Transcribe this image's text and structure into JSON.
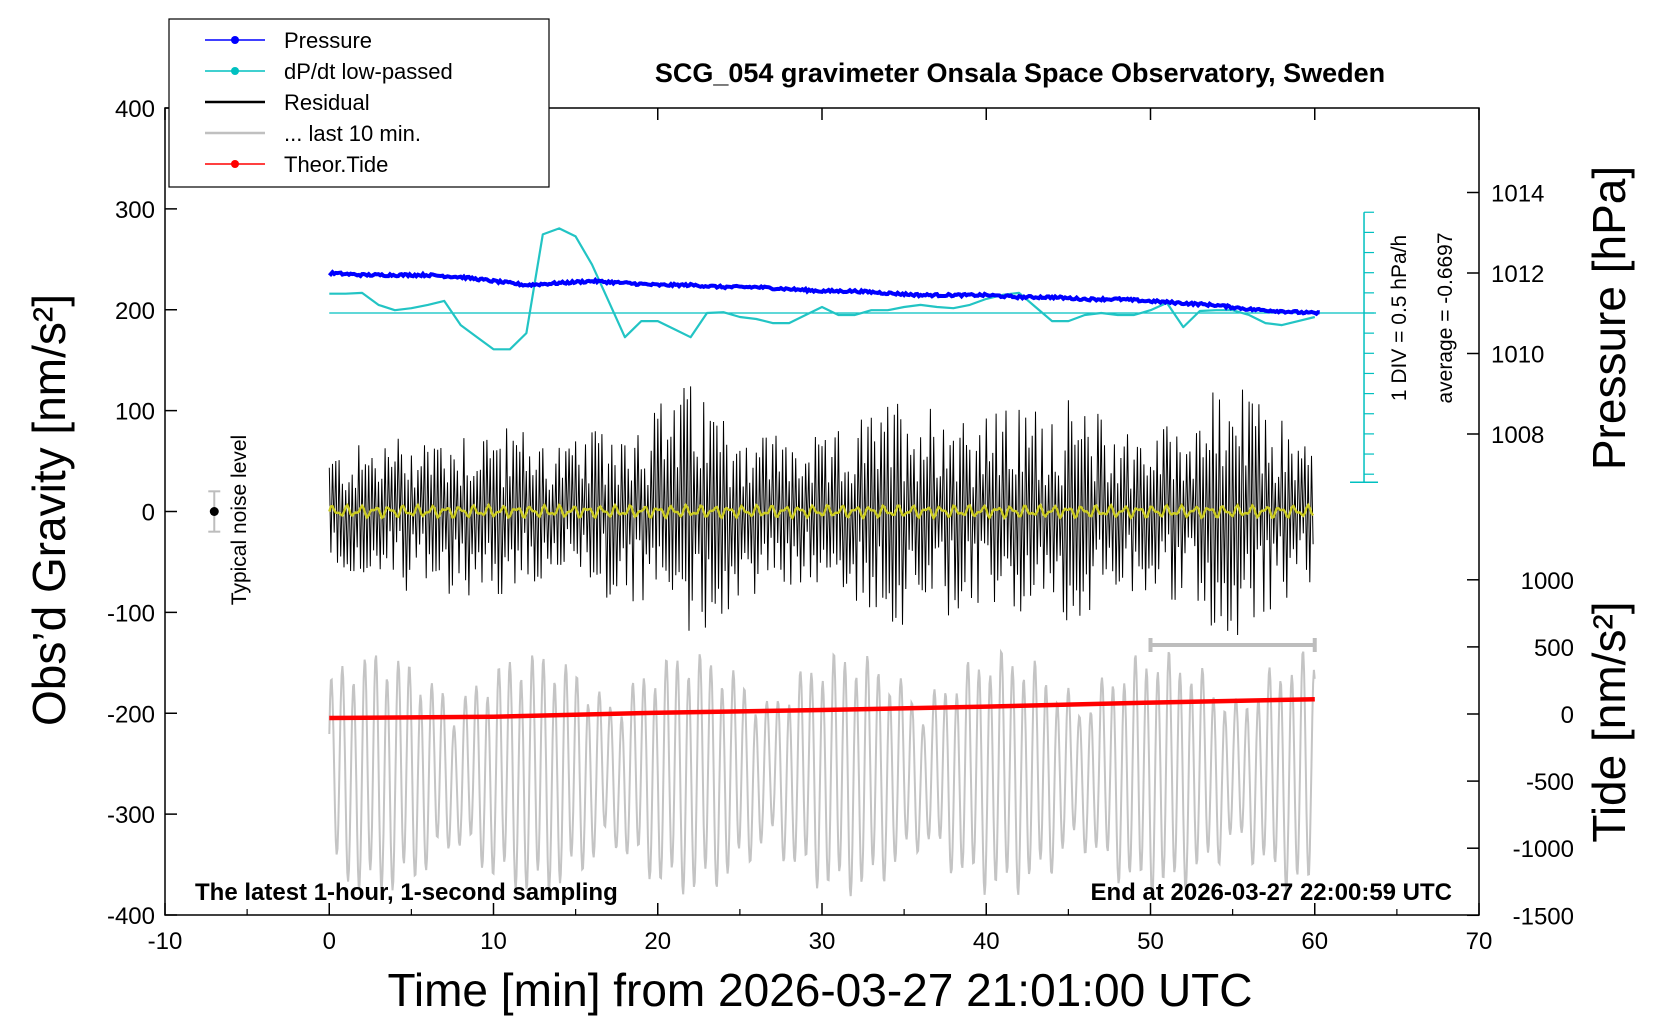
{
  "chart_data": {
    "type": "line",
    "title": "SCG_054 gravimeter Onsala Space Observatory, Sweden",
    "xlabel": "Time [min] from 2026-03-27 21:01:00 UTC",
    "ylabel_left": "Obs’d Gravity [nm/s²]",
    "ylabel_right_top": "Pressure [hPa]",
    "ylabel_right_bottom": "Tide [nm/s²]",
    "xlim": [
      -10,
      70
    ],
    "ylim_left": [
      -400,
      400
    ],
    "x_ticks": [
      "-10",
      "0",
      "10",
      "20",
      "30",
      "40",
      "50",
      "60",
      "70"
    ],
    "y_ticks_left": [
      "400",
      "300",
      "200",
      "100",
      "0",
      "-100",
      "-200",
      "-300",
      "-400"
    ],
    "pressure_ticks": [
      "1014",
      "1012",
      "1010",
      "1008"
    ],
    "tide_ticks": [
      "1000",
      "500",
      "0",
      "-500",
      "-1000",
      "-1500"
    ],
    "legend": {
      "position": "top-left",
      "items": [
        {
          "label": "Pressure",
          "color": "#0000ff",
          "marker": "dot"
        },
        {
          "label": "dP/dt low-passed",
          "color": "#00c0c0",
          "marker": "dot"
        },
        {
          "label": "Residual",
          "color": "#000000",
          "marker": "none"
        },
        {
          "label": "... last 10 min.",
          "color": "#c0c0c0",
          "marker": "none"
        },
        {
          "label": "Theor.Tide",
          "color": "#ff0000",
          "marker": "dot"
        }
      ]
    },
    "annotations": {
      "scale_div": "1 DIV = 0.5 hPa/h",
      "average": "average = -0.6697",
      "noise": "Typical noise level",
      "bottom_left": "The latest 1-hour, 1-second sampling",
      "bottom_right": "End at 2026-03-27 22:00:59 UTC"
    },
    "series": [
      {
        "name": "Pressure",
        "unit": "hPa",
        "x": [
          0,
          2,
          4,
          6,
          8,
          10,
          12,
          14,
          16,
          18,
          20,
          22,
          24,
          26,
          28,
          30,
          32,
          34,
          36,
          38,
          40,
          42,
          44,
          46,
          48,
          50,
          52,
          54,
          56,
          58,
          60
        ],
        "y": [
          1012.0,
          1011.95,
          1011.95,
          1011.95,
          1011.9,
          1011.8,
          1011.7,
          1011.75,
          1011.8,
          1011.75,
          1011.7,
          1011.7,
          1011.65,
          1011.65,
          1011.6,
          1011.55,
          1011.55,
          1011.5,
          1011.45,
          1011.45,
          1011.45,
          1011.4,
          1011.4,
          1011.35,
          1011.35,
          1011.3,
          1011.25,
          1011.2,
          1011.1,
          1011.05,
          1011.0
        ]
      },
      {
        "name": "dP/dt low-passed",
        "unit": "hPa/h",
        "x": [
          0,
          1,
          2,
          3,
          4,
          5,
          6,
          7,
          8,
          9,
          10,
          11,
          12,
          13,
          14,
          15,
          16,
          17,
          18,
          19,
          20,
          21,
          22,
          23,
          24,
          25,
          26,
          27,
          28,
          29,
          30,
          31,
          32,
          33,
          34,
          35,
          36,
          37,
          38,
          39,
          40,
          41,
          42,
          43,
          44,
          45,
          46,
          47,
          48,
          49,
          50,
          51,
          52,
          53,
          54,
          55,
          56,
          57,
          58,
          59,
          60
        ],
        "y": [
          0.48,
          0.48,
          0.5,
          0.2,
          0.07,
          0.12,
          0.2,
          0.3,
          -0.3,
          -0.6,
          -0.9,
          -0.9,
          -0.5,
          1.95,
          2.1,
          1.9,
          1.2,
          0.3,
          -0.6,
          -0.2,
          -0.2,
          -0.4,
          -0.6,
          0.0,
          0.02,
          -0.1,
          -0.15,
          -0.25,
          -0.25,
          -0.05,
          0.15,
          -0.05,
          -0.05,
          0.07,
          0.07,
          0.15,
          0.2,
          0.15,
          0.12,
          0.2,
          0.35,
          0.45,
          0.5,
          0.15,
          -0.2,
          -0.2,
          -0.05,
          0.0,
          -0.05,
          -0.05,
          0.07,
          0.25,
          -0.35,
          0.05,
          0.07,
          0.07,
          -0.05,
          -0.25,
          -0.3,
          -0.2,
          -0.1
        ]
      },
      {
        "name": "Residual",
        "unit": "nm/s²",
        "envelope_x": [
          0,
          5,
          10,
          15,
          20,
          22,
          25,
          30,
          35,
          40,
          45,
          50,
          55,
          60
        ],
        "envelope_amp": [
          60,
          80,
          90,
          70,
          110,
          130,
          90,
          70,
          120,
          100,
          110,
          80,
          130,
          70
        ]
      },
      {
        "name": "... last 10 min.",
        "unit": "nm/s²",
        "x_range": [
          0,
          60
        ],
        "center": -260,
        "amp": 110
      },
      {
        "name": "Theor.Tide",
        "unit": "nm/s²",
        "x": [
          0,
          10,
          20,
          30,
          40,
          50,
          60
        ],
        "y": [
          -30,
          -20,
          10,
          30,
          55,
          85,
          110
        ]
      }
    ],
    "last10_bar_x": [
      50,
      60
    ]
  }
}
